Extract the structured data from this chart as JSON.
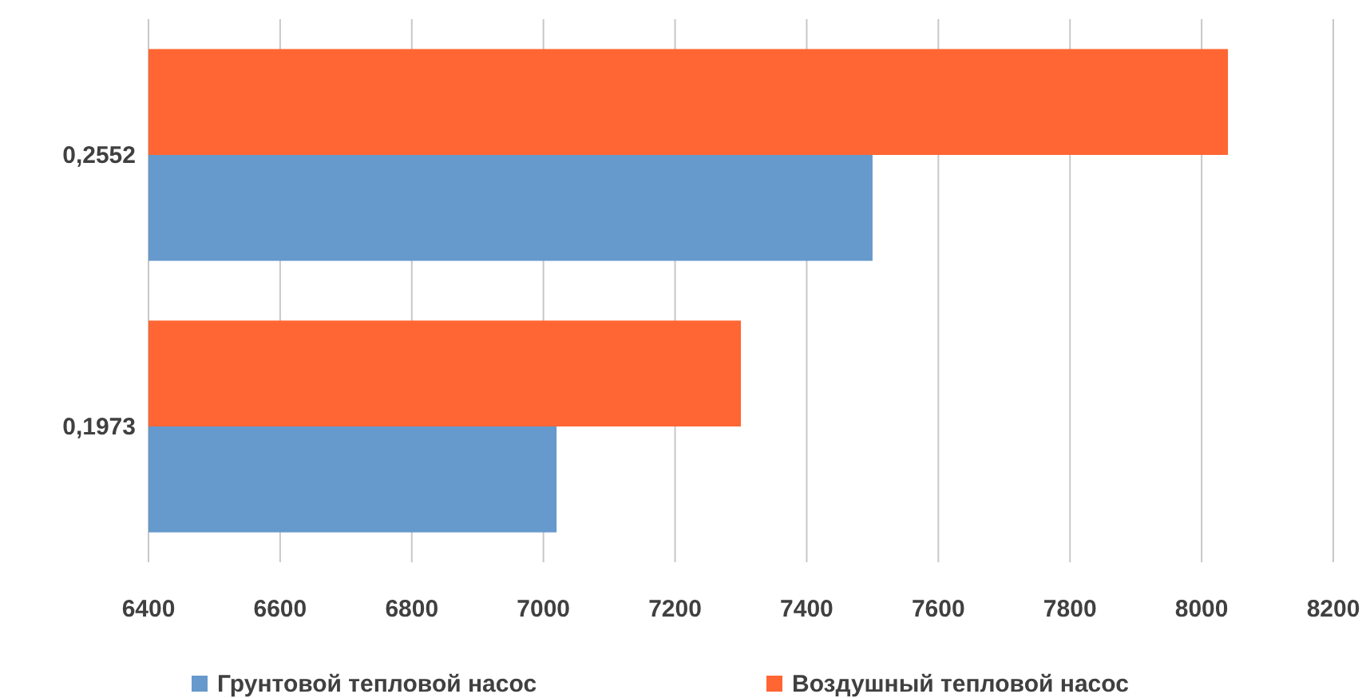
{
  "chart_data": {
    "type": "bar",
    "orientation": "horizontal",
    "categories": [
      "0,2552",
      "0,1973"
    ],
    "series": [
      {
        "name": "Грунтовой тепловой насос",
        "color": "#6699cc",
        "values": [
          7500,
          7020
        ]
      },
      {
        "name": "Воздушный тепловой насос",
        "color": "#ff6633",
        "values": [
          8040,
          7300
        ]
      }
    ],
    "xlim": [
      6400,
      8200
    ],
    "xticks": [
      6400,
      6600,
      6800,
      7000,
      7200,
      7400,
      7600,
      7800,
      8000,
      8200
    ],
    "grid": "x",
    "legend": "bottom"
  }
}
